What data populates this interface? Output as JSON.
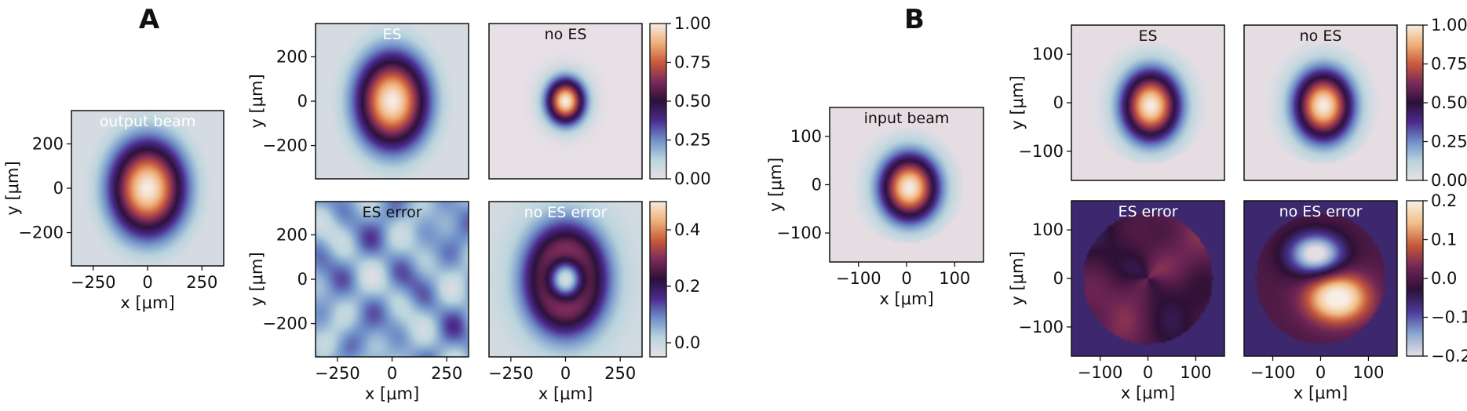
{
  "panel_labels": [
    "A",
    "B"
  ],
  "axis_labels": {
    "x": "x [μm]",
    "y": "y [μm]"
  },
  "colors": {
    "bg_pale": "#e6dde3",
    "cmap": [
      "#e8e0e6",
      "#b9d4dd",
      "#6f8fc8",
      "#4b2a8e",
      "#2a1138",
      "#7a2a5a",
      "#c85a3c",
      "#f0b078",
      "#f6ece3"
    ],
    "cmap_div": [
      "#e8e0e6",
      "#8aa8d0",
      "#4a3a9a",
      "#2d1035",
      "#6e2556",
      "#c65a3a",
      "#f2c088",
      "#f8eee6"
    ]
  },
  "chart_data": [
    {
      "id": "A-output",
      "type": "heatmap",
      "title": "output beam",
      "xlabel": "x [μm]",
      "ylabel": "y [μm]",
      "xlim": [
        -350,
        350
      ],
      "ylim": [
        -350,
        350
      ],
      "xticks": [
        "−250",
        "0",
        "250"
      ],
      "yticks": [
        "200",
        "0",
        "−200"
      ],
      "field": {
        "kind": "gauss",
        "sigma_x": 120,
        "sigma_y": 150,
        "scale": 1.0,
        "floor": 0.05
      }
    },
    {
      "id": "A-ES",
      "type": "heatmap",
      "title": "ES",
      "ylabel": "y [μm]",
      "xlim": [
        -350,
        350
      ],
      "ylim": [
        -350,
        350
      ],
      "yticks": [
        "200",
        "0",
        "−200"
      ],
      "field": {
        "kind": "gauss",
        "sigma_x": 115,
        "sigma_y": 150,
        "scale": 1.0,
        "floor": 0.05
      }
    },
    {
      "id": "A-noES",
      "type": "heatmap",
      "title": "no ES",
      "xlim": [
        -350,
        350
      ],
      "ylim": [
        -350,
        350
      ],
      "field": {
        "kind": "gauss",
        "sigma_x": 60,
        "sigma_y": 70,
        "scale": 1.0,
        "floor": 0.0
      }
    },
    {
      "id": "A-ES-error",
      "type": "heatmap",
      "title": "ES error",
      "xlabel": "x [μm]",
      "ylabel": "y [μm]",
      "xlim": [
        -350,
        350
      ],
      "ylim": [
        -350,
        350
      ],
      "xticks": [
        "−250",
        "0",
        "250"
      ],
      "yticks": [
        "200",
        "0",
        "−200"
      ],
      "field": {
        "kind": "noise",
        "base": 0.06,
        "amp": 0.05,
        "range": [
          -0.05,
          0.5
        ]
      }
    },
    {
      "id": "A-noES-error",
      "type": "heatmap",
      "title": "no ES error",
      "xlabel": "x [μm]",
      "xlim": [
        -350,
        350
      ],
      "ylim": [
        -350,
        350
      ],
      "xticks": [
        "−250",
        "0",
        "250"
      ],
      "field": {
        "kind": "ring",
        "range": [
          -0.05,
          0.5
        ]
      }
    },
    {
      "id": "A-cbar-top",
      "type": "colorbar",
      "range": [
        0,
        1
      ],
      "ticks": [
        "1.00",
        "0.75",
        "0.50",
        "0.25",
        "0.00"
      ]
    },
    {
      "id": "A-cbar-bottom",
      "type": "colorbar",
      "range": [
        -0.05,
        0.5
      ],
      "ticks": [
        "0.4",
        "0.2",
        "0.0"
      ]
    },
    {
      "id": "B-input",
      "type": "heatmap",
      "title": "input beam",
      "xlabel": "x [μm]",
      "ylabel": "y [μm]",
      "xlim": [
        -160,
        160
      ],
      "ylim": [
        -160,
        160
      ],
      "xticks": [
        "−100",
        "0",
        "100"
      ],
      "yticks": [
        "100",
        "0",
        "−100"
      ],
      "field": {
        "kind": "gauss-disk",
        "sigma_x": 42,
        "sigma_y": 48,
        "radius": 120
      }
    },
    {
      "id": "B-ES",
      "type": "heatmap",
      "title": "ES",
      "ylabel": "y [μm]",
      "xlim": [
        -160,
        160
      ],
      "ylim": [
        -160,
        160
      ],
      "yticks": [
        "100",
        "0",
        "−100"
      ],
      "field": {
        "kind": "gauss-disk",
        "sigma_x": 42,
        "sigma_y": 50,
        "radius": 125
      }
    },
    {
      "id": "B-noES",
      "type": "heatmap",
      "title": "no ES",
      "xlim": [
        -160,
        160
      ],
      "ylim": [
        -160,
        160
      ],
      "field": {
        "kind": "gauss-disk",
        "sigma_x": 42,
        "sigma_y": 50,
        "radius": 125
      }
    },
    {
      "id": "B-ES-error",
      "type": "heatmap",
      "title": "ES error",
      "xlabel": "x [μm]",
      "ylabel": "y [μm]",
      "xlim": [
        -160,
        160
      ],
      "ylim": [
        -160,
        160
      ],
      "xticks": [
        "−100",
        "0",
        "100"
      ],
      "yticks": [
        "100",
        "0",
        "−100"
      ],
      "field": {
        "kind": "diff-small",
        "range": [
          -0.2,
          0.2
        ]
      }
    },
    {
      "id": "B-noES-error",
      "type": "heatmap",
      "title": "no ES error",
      "xlabel": "x [μm]",
      "xlim": [
        -160,
        160
      ],
      "ylim": [
        -160,
        160
      ],
      "xticks": [
        "−100",
        "0",
        "100"
      ],
      "field": {
        "kind": "diff-lobes",
        "range": [
          -0.2,
          0.2
        ]
      }
    },
    {
      "id": "B-cbar-top",
      "type": "colorbar",
      "range": [
        0,
        1
      ],
      "ticks": [
        "1.00",
        "0.75",
        "0.50",
        "0.25",
        "0.00"
      ]
    },
    {
      "id": "B-cbar-bottom",
      "type": "colorbar",
      "range": [
        -0.2,
        0.2
      ],
      "ticks": [
        "0.2",
        "0.1",
        "0.0",
        "−0.1",
        "−0.2"
      ]
    }
  ]
}
